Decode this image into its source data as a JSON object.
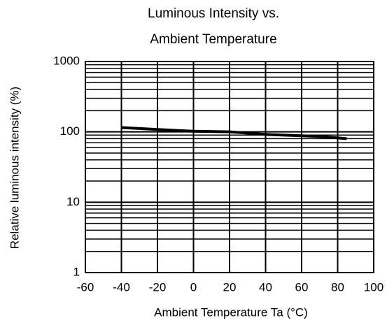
{
  "chart_data": {
    "type": "line",
    "title": [
      "Luminous Intensity vs.",
      "Ambient Temperature"
    ],
    "x_label": "Ambient Temperature Ta (°C)",
    "y_label": "Relative luminous intensity (%)",
    "x": [
      -40,
      -20,
      0,
      20,
      40,
      60,
      70,
      85
    ],
    "values": [
      115,
      108,
      102,
      100,
      92,
      88,
      86,
      80
    ],
    "color": "#000000",
    "xlim": [
      -60,
      100
    ],
    "xticks": [
      -60,
      -40,
      -20,
      0,
      20,
      40,
      60,
      80,
      100
    ],
    "ylim": [
      1,
      1000
    ],
    "yticks": [
      1,
      10,
      100,
      1000
    ],
    "y_log": true,
    "grid": true,
    "minor_grid": true
  }
}
